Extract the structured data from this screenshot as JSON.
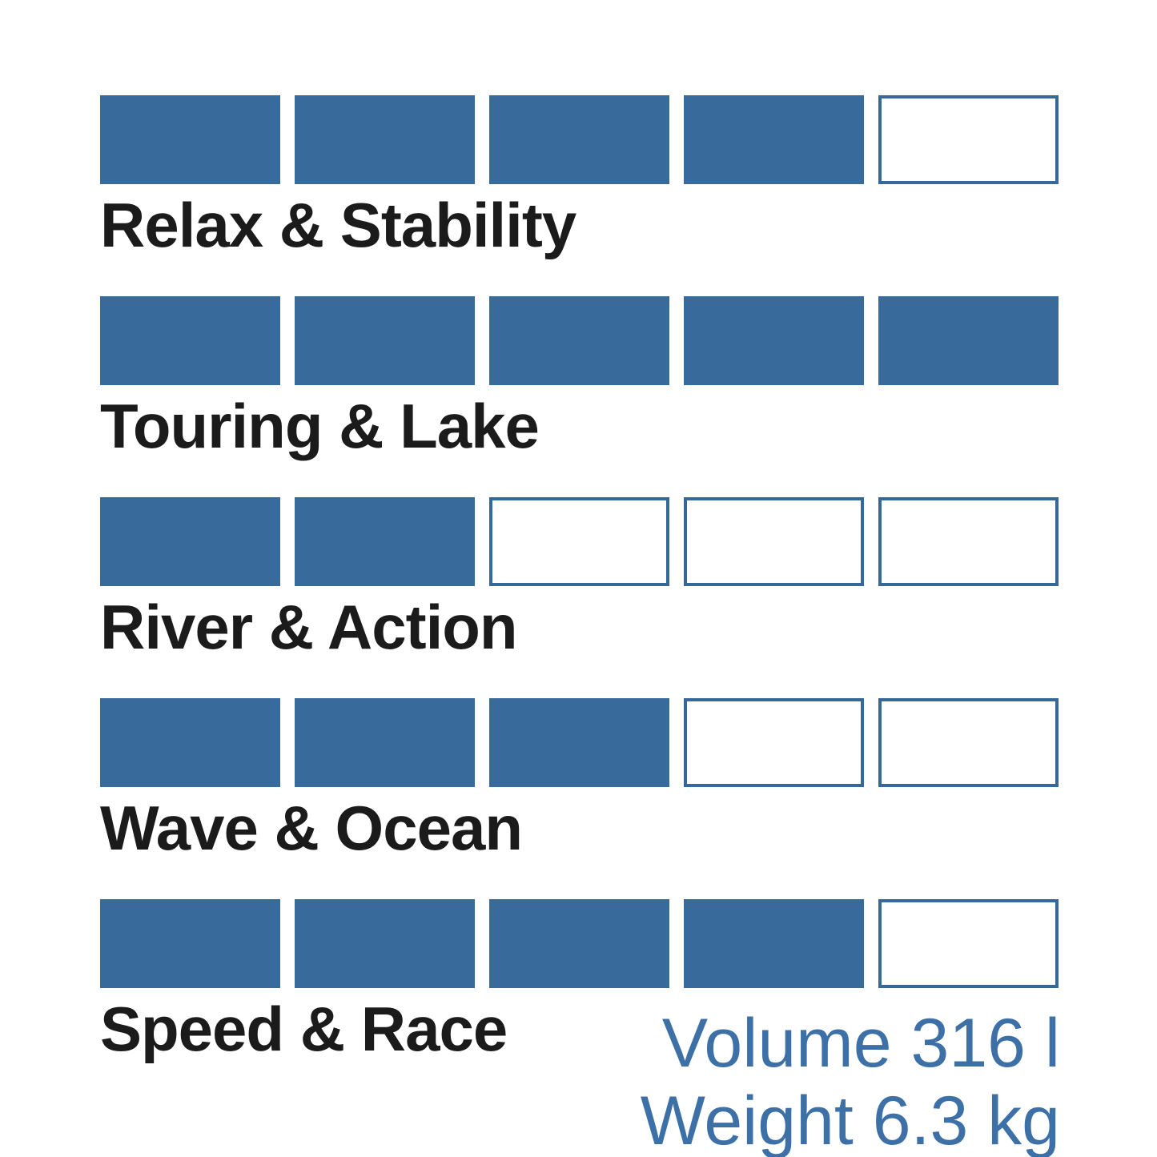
{
  "colors": {
    "block_fill": "#396A9C",
    "block_border": "#38689A",
    "label_text": "#1B1B1B",
    "spec_text": "#3C70A7"
  },
  "rating": {
    "max": 5
  },
  "categories": [
    {
      "label": "Relax & Stability",
      "rating": 4
    },
    {
      "label": "Touring & Lake",
      "rating": 5
    },
    {
      "label": "River & Action",
      "rating": 2
    },
    {
      "label": "Wave & Ocean",
      "rating": 3
    },
    {
      "label": "Speed & Race",
      "rating": 4
    }
  ],
  "specs": {
    "volume": "Volume 316 l",
    "weight": "Weight 6.3 kg"
  },
  "chart_data": {
    "type": "bar",
    "subtype": "discrete-block-rating",
    "categories": [
      "Relax & Stability",
      "Touring & Lake",
      "River & Action",
      "Wave & Ocean",
      "Speed & Race"
    ],
    "values": [
      4,
      5,
      2,
      3,
      4
    ],
    "scale_max": 5,
    "title": "",
    "xlabel": "",
    "ylabel": "",
    "ylim": [
      0,
      5
    ],
    "grid": false,
    "legend_position": "none",
    "annotations": [
      "Volume 316 l",
      "Weight 6.3 kg"
    ],
    "annotation_position": "bottom-right",
    "fill_color": "#396A9C",
    "empty_style": "white with blue outline"
  }
}
